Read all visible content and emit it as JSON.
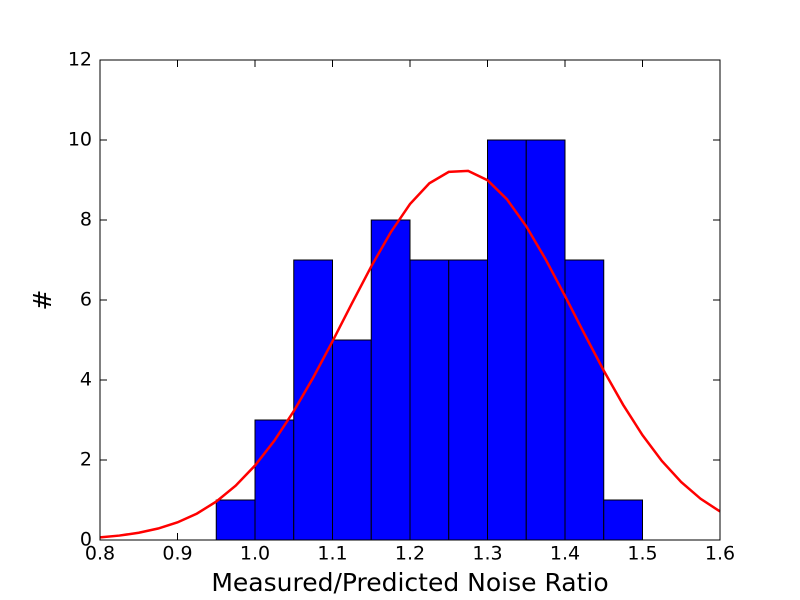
{
  "chart_data": {
    "type": "histogram",
    "xlabel": "Measured/Predicted Noise Ratio",
    "ylabel": "#",
    "bins": [
      0.95,
      1.0,
      1.05,
      1.1,
      1.15,
      1.2,
      1.25,
      1.3,
      1.35,
      1.4,
      1.45,
      1.5
    ],
    "counts": [
      1,
      3,
      7,
      5,
      8,
      7,
      7,
      10,
      10,
      7,
      1
    ],
    "color": "#0000ff",
    "curve": {
      "color": "#ff0000",
      "x": [
        0.8,
        0.825,
        0.85,
        0.875,
        0.9,
        0.925,
        0.95,
        0.975,
        1.0,
        1.025,
        1.05,
        1.075,
        1.1,
        1.125,
        1.15,
        1.175,
        1.2,
        1.225,
        1.25,
        1.275,
        1.3,
        1.325,
        1.35,
        1.375,
        1.4,
        1.425,
        1.45,
        1.475,
        1.5,
        1.525,
        1.55,
        1.575,
        1.6
      ],
      "y": [
        0.066,
        0.111,
        0.181,
        0.287,
        0.441,
        0.66,
        0.96,
        1.356,
        1.862,
        2.484,
        3.221,
        4.057,
        4.967,
        5.913,
        6.839,
        7.688,
        8.399,
        8.918,
        9.203,
        9.229,
        8.995,
        8.52,
        7.843,
        7.017,
        6.101,
        5.156,
        4.235,
        3.38,
        2.621,
        1.976,
        1.448,
        1.031,
        0.713
      ]
    },
    "xlim": [
      0.8,
      1.6
    ],
    "xticks": [
      0.8,
      0.9,
      {
        "value": 1,
        "label": "1.0"
      },
      1.1,
      1.2,
      1.3,
      1.4,
      1.5,
      1.6
    ],
    "ylim": [
      0,
      12
    ],
    "yticks": [
      0,
      2,
      4,
      6,
      8,
      10,
      12
    ],
    "grid": false
  }
}
